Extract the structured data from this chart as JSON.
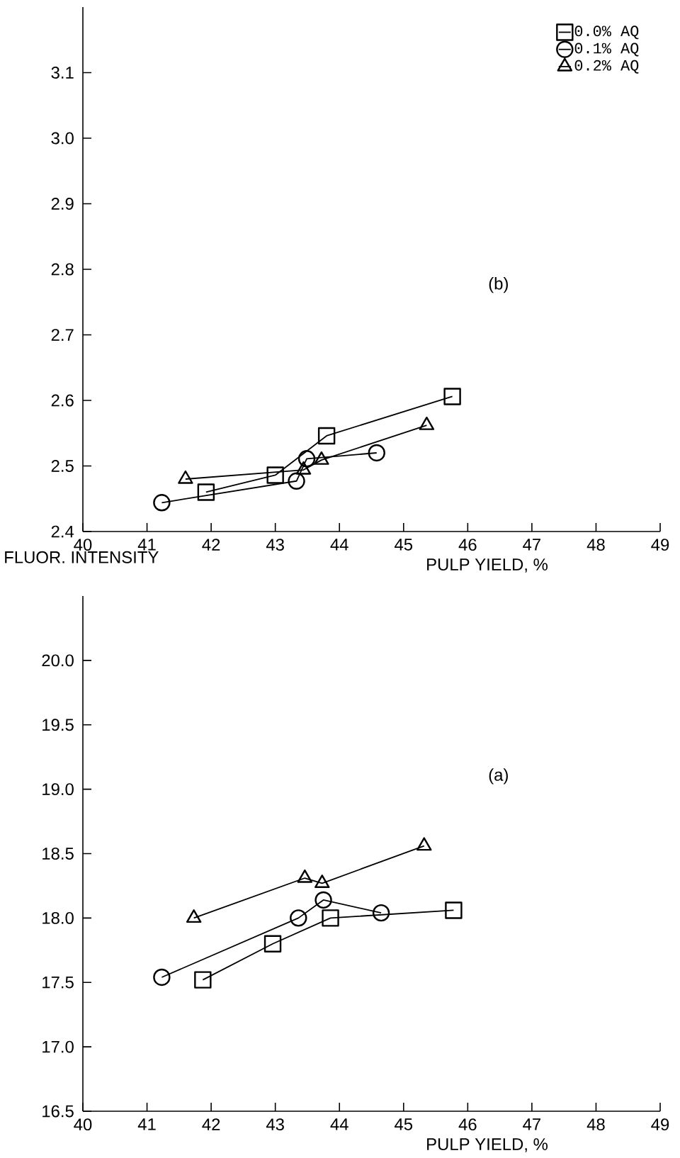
{
  "chart_data": [
    {
      "type": "line",
      "xlabel": "PULP YIELD, %",
      "xlim": [
        40,
        49
      ],
      "xticks": [
        40,
        41,
        42,
        43,
        44,
        45,
        46,
        47,
        48,
        49
      ],
      "ylim": [
        2.4,
        3.2
      ],
      "yticks": [
        2.4,
        2.5,
        2.6,
        2.7,
        2.8,
        2.9,
        {
          "value": 3.0,
          "label": "3.0"
        },
        3.1
      ],
      "legend": "top right",
      "annotations": [
        "(b)"
      ],
      "series": [
        {
          "name": "0.0% AQ",
          "color": "#000000",
          "marker": "square",
          "x": [
            41.92,
            43.0,
            43.8,
            45.76
          ],
          "values": [
            2.46,
            2.486,
            2.546,
            2.606
          ]
        },
        {
          "name": "0.1% AQ",
          "color": "#000000",
          "marker": "circle",
          "x": [
            41.23,
            43.33,
            43.49,
            44.58
          ],
          "values": [
            2.444,
            2.477,
            2.511,
            2.52
          ]
        },
        {
          "name": "0.2% AQ",
          "color": "#000000",
          "marker": "triangle",
          "x": [
            41.6,
            43.44,
            43.72,
            45.36
          ],
          "values": [
            2.48,
            2.494,
            2.509,
            2.562
          ]
        }
      ]
    },
    {
      "type": "line",
      "xlabel": "PULP YIELD, %",
      "ylabel": "FLUOR. INTENSITY",
      "xlim": [
        40,
        49
      ],
      "xticks": [
        40,
        41,
        42,
        43,
        44,
        45,
        46,
        47,
        48,
        49
      ],
      "ylim": [
        16.5,
        20.5
      ],
      "yticks": [
        16.5,
        {
          "value": 17.0,
          "label": "17.0"
        },
        17.5,
        {
          "value": 18.0,
          "label": "18.0"
        },
        18.5,
        {
          "value": 19.0,
          "label": "19.0"
        },
        19.5,
        {
          "value": 20.0,
          "label": "20.0"
        }
      ],
      "annotations": [
        "(a)"
      ],
      "series": [
        {
          "color": "#000000",
          "marker": "square",
          "x": [
            41.87,
            42.96,
            43.86,
            45.78
          ],
          "values": [
            17.52,
            17.8,
            18.0,
            18.06
          ]
        },
        {
          "color": "#000000",
          "marker": "circle",
          "x": [
            41.23,
            43.36,
            43.75,
            44.65
          ],
          "values": [
            17.54,
            18.0,
            18.14,
            18.04
          ]
        },
        {
          "color": "#000000",
          "marker": "triangle",
          "x": [
            41.73,
            43.46,
            43.73,
            45.32
          ],
          "values": [
            18.0,
            18.31,
            18.27,
            18.56
          ]
        }
      ]
    }
  ]
}
